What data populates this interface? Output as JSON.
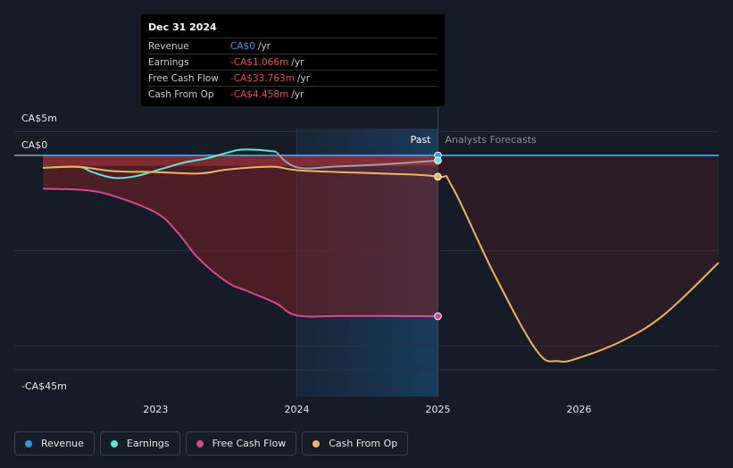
{
  "tooltip": {
    "date": "Dec 31 2024",
    "rows": [
      {
        "name": "Revenue",
        "value": "CA$0",
        "unit": "/yr",
        "color": "#2f9ae5"
      },
      {
        "name": "Earnings",
        "value": "-CA$1.066m",
        "unit": "/yr",
        "color": "#e8494d"
      },
      {
        "name": "Free Cash Flow",
        "value": "-CA$33.763m",
        "unit": "/yr",
        "color": "#e8494d"
      },
      {
        "name": "Cash From Op",
        "value": "-CA$4.458m",
        "unit": "/yr",
        "color": "#e8494d"
      }
    ]
  },
  "divider": {
    "past_label": "Past",
    "forecast_label": "Analysts Forecasts"
  },
  "legend": [
    {
      "label": "Revenue",
      "color": "#2f9ae5"
    },
    {
      "label": "Earnings",
      "color": "#5ce8d2"
    },
    {
      "label": "Free Cash Flow",
      "color": "#d9488f"
    },
    {
      "label": "Cash From Op",
      "color": "#f0b35c"
    }
  ],
  "chart_data": {
    "type": "line",
    "y_tick_labels": [
      "CA$5m",
      "CA$0",
      "-CA$45m"
    ],
    "x_tick_labels": [
      "2023",
      "2024",
      "2025",
      "2026"
    ],
    "ylim": [
      -45,
      5
    ],
    "xlim": [
      2022.2,
      2026.99
    ],
    "past_end": 2025.0,
    "gridlines": [
      5,
      0,
      -20,
      -40,
      -45
    ],
    "series": [
      {
        "name": "Revenue",
        "color": "#2f9ae5",
        "x": [
          2022.2,
          2023.0,
          2024.0,
          2025.0,
          2026.99
        ],
        "y": [
          0,
          0,
          0,
          0,
          0
        ]
      },
      {
        "name": "Earnings",
        "color": "#5ce8d2",
        "x": [
          2022.2,
          2022.45,
          2022.55,
          2022.7,
          2022.85,
          2023.0,
          2023.2,
          2023.35,
          2023.5,
          2023.6,
          2023.75,
          2023.85,
          2024.0,
          2024.3,
          2024.6,
          2025.0
        ],
        "y": [
          -2.6,
          -2.4,
          -3.5,
          -4.7,
          -4.4,
          -3.2,
          -1.5,
          -0.7,
          0.5,
          1.2,
          1.1,
          0.8,
          -2.5,
          -2.3,
          -1.9,
          -1.07
        ]
      },
      {
        "name": "Free Cash Flow",
        "color": "#d9488f",
        "x": [
          2022.2,
          2022.5,
          2022.7,
          2023.0,
          2023.15,
          2023.3,
          2023.5,
          2023.65,
          2023.85,
          2024.0,
          2024.3,
          2024.6,
          2025.0
        ],
        "y": [
          -7.0,
          -7.3,
          -8.5,
          -12.0,
          -16.0,
          -21.5,
          -26.5,
          -28.5,
          -31.0,
          -33.6,
          -33.7,
          -33.7,
          -33.76
        ]
      },
      {
        "name": "Cash From Op",
        "color": "#f0b35c",
        "x": [
          2022.2,
          2022.45,
          2022.7,
          2023.0,
          2023.3,
          2023.5,
          2023.7,
          2023.85,
          2024.0,
          2024.3,
          2024.6,
          2025.0,
          2025.1,
          2025.4,
          2025.7,
          2025.85,
          2026.0,
          2026.3,
          2026.6,
          2026.99
        ],
        "y": [
          -2.6,
          -2.4,
          -3.3,
          -3.5,
          -3.8,
          -3.0,
          -2.5,
          -2.4,
          -3.1,
          -3.5,
          -3.8,
          -4.46,
          -6.5,
          -25.0,
          -41.0,
          -43.2,
          -42.5,
          -39.0,
          -33.5,
          -22.5
        ]
      }
    ],
    "end_markers": [
      {
        "series": "Revenue",
        "x": 2025.0,
        "y": 0
      },
      {
        "series": "Earnings",
        "x": 2025.0,
        "y": -1.07
      },
      {
        "series": "Free Cash Flow",
        "x": 2025.0,
        "y": -33.76
      },
      {
        "series": "Cash From Op",
        "x": 2025.0,
        "y": -4.46
      }
    ]
  }
}
